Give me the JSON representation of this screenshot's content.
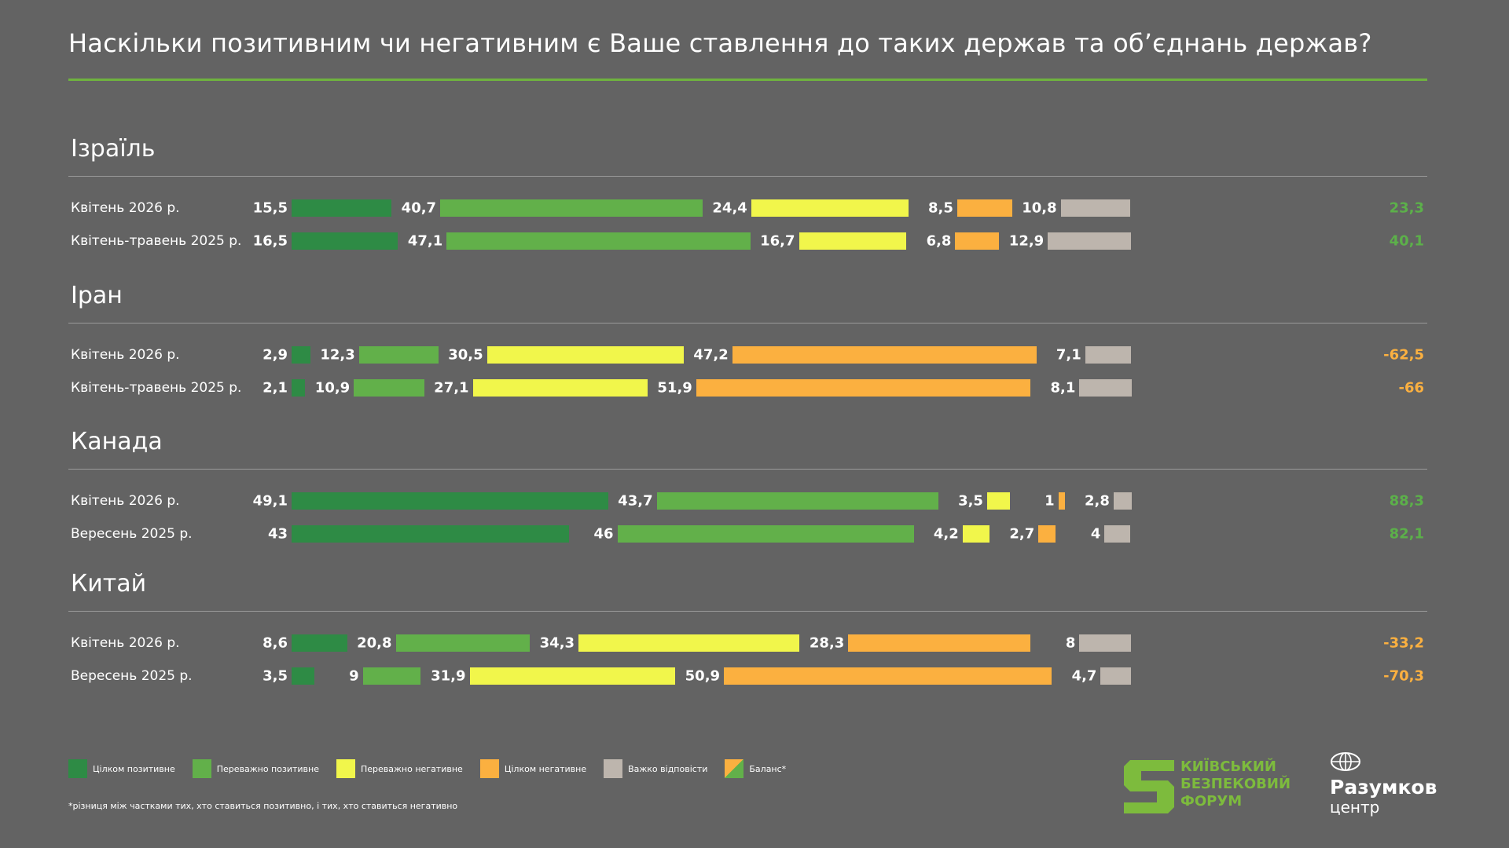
{
  "title": "Наскільки позитивним чи негативним є Ваше ставлення до таких держав та об’єднань держав?",
  "colors": {
    "fully_positive": "#2e8b45",
    "mostly_positive": "#62b04a",
    "mostly_negative": "#f1f64b",
    "fully_negative": "#fbb040",
    "hard_to_say": "#bdb5ad",
    "balance_positive": "#5cb04a",
    "balance_negative": "#fbb040",
    "background": "#636363"
  },
  "chart_data": {
    "type": "bar",
    "orientation": "horizontal-stacked",
    "title": "Наскільки позитивним чи негативним є Ваше ставлення до таких держав та об’єднань держав?",
    "series_names": [
      "Цілком позитивне",
      "Переважно позитивне",
      "Переважно негативне",
      "Цілком негативне",
      "Важко відповісти"
    ],
    "groups": [
      {
        "country": "Ізраїль",
        "rows": [
          {
            "label": "Квітень  2026 р.",
            "values": [
              15.5,
              40.7,
              24.4,
              8.5,
              10.8
            ],
            "value_labels": [
              "15,5",
              "40,7",
              "24,4",
              "8,5",
              "10,8"
            ],
            "balance": "23,3",
            "balance_sign": "positive"
          },
          {
            "label": "Квітень-травень 2025 р.",
            "values": [
              16.5,
              47.1,
              16.7,
              6.8,
              12.9
            ],
            "value_labels": [
              "16,5",
              "47,1",
              "16,7",
              "6,8",
              "12,9"
            ],
            "balance": "40,1",
            "balance_sign": "positive"
          }
        ]
      },
      {
        "country": "Іран",
        "rows": [
          {
            "label": "Квітень  2026 р.",
            "values": [
              2.9,
              12.3,
              30.5,
              47.2,
              7.1
            ],
            "value_labels": [
              "2,9",
              "12,3",
              "30,5",
              "47,2",
              "7,1"
            ],
            "balance": "-62,5",
            "balance_sign": "negative"
          },
          {
            "label": "Квітень-травень 2025 р.",
            "values": [
              2.1,
              10.9,
              27.1,
              51.9,
              8.1
            ],
            "value_labels": [
              "2,1",
              "10,9",
              "27,1",
              "51,9",
              "8,1"
            ],
            "balance": "-66",
            "balance_sign": "negative"
          }
        ]
      },
      {
        "country": "Канада",
        "rows": [
          {
            "label": "Квітень  2026 р.",
            "values": [
              49.1,
              43.7,
              3.5,
              1,
              2.8
            ],
            "value_labels": [
              "49,1",
              "43,7",
              "3,5",
              "1",
              "2,8"
            ],
            "balance": "88,3",
            "balance_sign": "positive"
          },
          {
            "label": "Вересень 2025 р.",
            "values": [
              43,
              46,
              4.2,
              2.7,
              4
            ],
            "value_labels": [
              "43",
              "46",
              "4,2",
              "2,7",
              "4"
            ],
            "balance": "82,1",
            "balance_sign": "positive"
          }
        ]
      },
      {
        "country": "Китай",
        "rows": [
          {
            "label": "Квітень  2026 р.",
            "values": [
              8.6,
              20.8,
              34.3,
              28.3,
              8
            ],
            "value_labels": [
              "8,6",
              "20,8",
              "34,3",
              "28,3",
              "8"
            ],
            "balance": "-33,2",
            "balance_sign": "negative"
          },
          {
            "label": "Вересень 2025 р.",
            "values": [
              3.5,
              9,
              31.9,
              50.9,
              4.7
            ],
            "value_labels": [
              "3,5",
              "9",
              "31,9",
              "50,9",
              "4,7"
            ],
            "balance": "-70,3",
            "balance_sign": "negative"
          }
        ]
      }
    ]
  },
  "legend": [
    {
      "label": "Цілком позитивне",
      "color": "#2e8b45"
    },
    {
      "label": "Переважно позитивне",
      "color": "#62b04a"
    },
    {
      "label": "Переважно негативне",
      "color": "#f1f64b"
    },
    {
      "label": "Цілком негативне",
      "color": "#fbb040"
    },
    {
      "label": "Важко відповісти",
      "color": "#bdb5ad"
    },
    {
      "label": "Баланс*",
      "color": "split-green-orange"
    }
  ],
  "footnote": "*різниця між частками тих, хто ставиться позитивно, і тих, хто ставиться негативно",
  "logos": {
    "kbf": [
      "КИЇВСЬКИЙ",
      "БЕЗПЕКОВИЙ",
      "ФОРУМ"
    ],
    "razumkov_name": "Разумков",
    "razumkov_sub": "центр"
  }
}
